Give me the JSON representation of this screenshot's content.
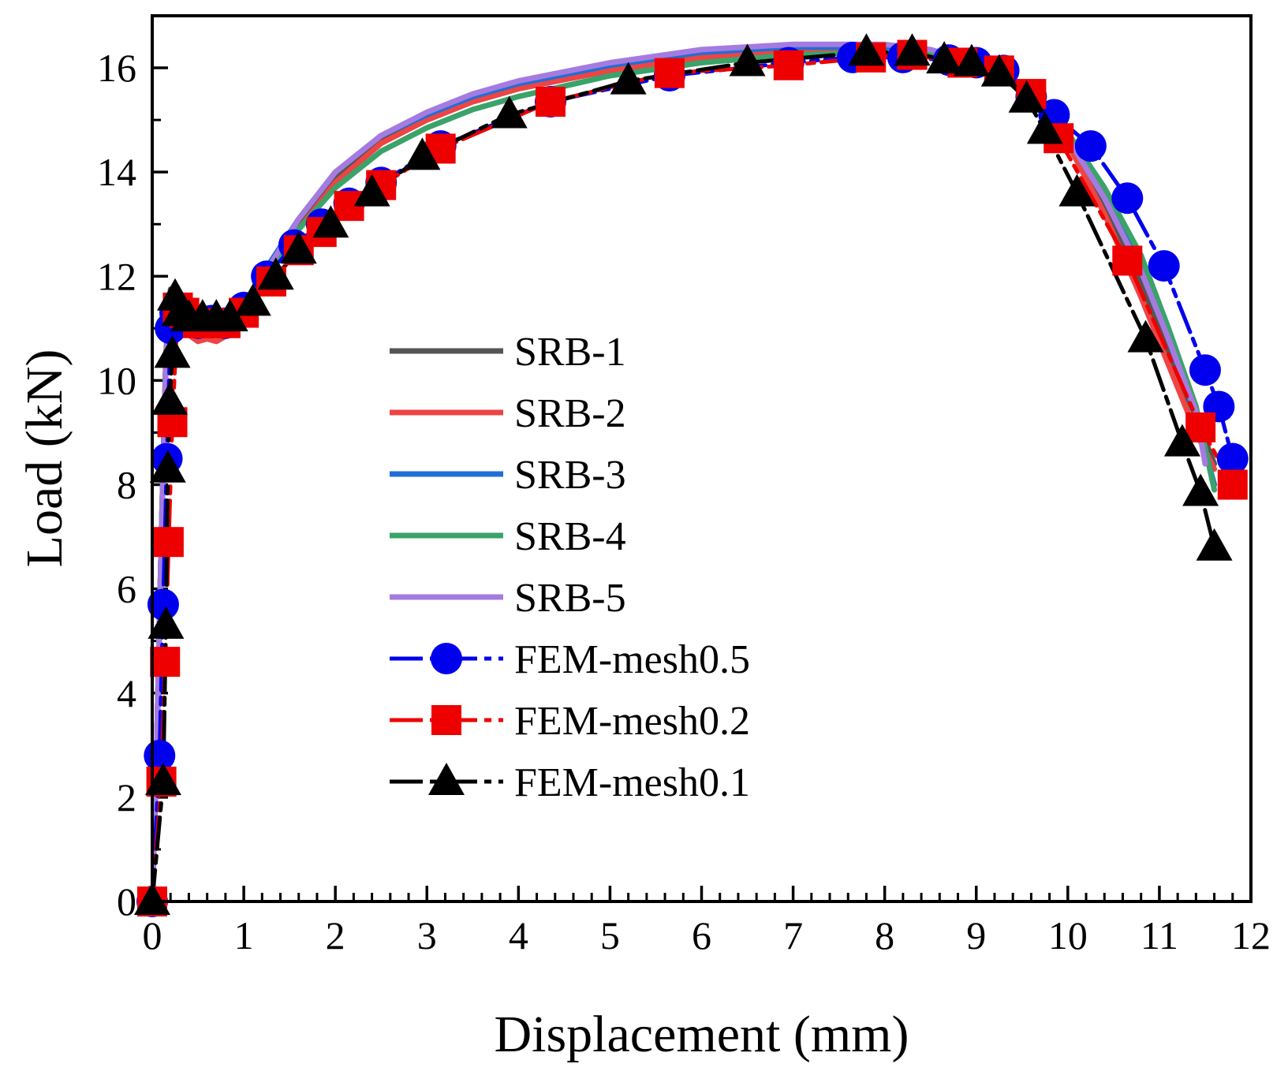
{
  "chart_data": {
    "type": "line",
    "title": "",
    "xlabel": "Displacement (mm)",
    "ylabel": "Load (kN)",
    "xlim": [
      0,
      12
    ],
    "ylim": [
      0,
      17
    ],
    "xticks": [
      "0",
      "1",
      "2",
      "3",
      "4",
      "5",
      "6",
      "7",
      "8",
      "9",
      "10",
      "11",
      "12"
    ],
    "yticks": [
      "0",
      "2",
      "4",
      "6",
      "8",
      "10",
      "12",
      "14",
      "16"
    ],
    "legend_position": "center-left",
    "series": [
      {
        "name": "SRB-1",
        "color": "#555555",
        "marker": "none",
        "dash": "solid",
        "x": [
          0,
          0.05,
          0.1,
          0.15,
          0.2,
          0.3,
          0.5,
          0.7,
          0.85,
          1.0,
          1.3,
          1.6,
          2.0,
          2.5,
          3.0,
          3.5,
          4.0,
          5.0,
          6.0,
          7.0,
          8.0,
          8.5,
          9.0,
          9.4,
          9.7,
          10.0,
          10.4,
          10.8,
          11.1,
          11.4,
          11.6
        ],
        "y": [
          0,
          3,
          7,
          10.5,
          11.75,
          11.2,
          10.9,
          10.9,
          11.0,
          11.3,
          12.2,
          13.0,
          13.9,
          14.6,
          15.0,
          15.35,
          15.6,
          15.95,
          16.2,
          16.3,
          16.3,
          16.25,
          16.05,
          15.7,
          15.3,
          14.7,
          13.4,
          11.9,
          10.5,
          9.3,
          8.4
        ]
      },
      {
        "name": "SRB-2",
        "color": "#ee4444",
        "marker": "none",
        "dash": "solid",
        "x": [
          0,
          0.05,
          0.1,
          0.15,
          0.2,
          0.3,
          0.5,
          0.6,
          0.7,
          0.85,
          1.0,
          1.3,
          1.6,
          2.0,
          2.5,
          3.0,
          3.5,
          4.0,
          5.0,
          6.0,
          7.0,
          8.0,
          8.5,
          9.0,
          9.4,
          9.7,
          10.0,
          10.4,
          10.8,
          11.1,
          11.4,
          11.6
        ],
        "y": [
          0,
          3,
          7,
          10.5,
          11.6,
          11.0,
          10.75,
          10.8,
          10.75,
          10.9,
          11.3,
          12.1,
          12.9,
          13.8,
          14.55,
          15.0,
          15.35,
          15.6,
          15.95,
          16.2,
          16.3,
          16.3,
          16.25,
          16.05,
          15.7,
          15.2,
          14.55,
          13.2,
          11.6,
          10.3,
          9.0,
          8.3
        ]
      },
      {
        "name": "SRB-3",
        "color": "#1f6fd6",
        "marker": "none",
        "dash": "solid",
        "x": [
          0,
          0.05,
          0.1,
          0.15,
          0.2,
          0.3,
          0.5,
          0.7,
          0.85,
          1.0,
          1.3,
          1.6,
          2.0,
          2.5,
          3.0,
          3.5,
          4.0,
          5.0,
          6.0,
          7.0,
          8.0,
          8.5,
          9.0,
          9.4,
          9.7,
          10.0,
          10.4,
          10.8,
          11.1,
          11.4,
          11.6
        ],
        "y": [
          0,
          3,
          7,
          10.4,
          11.5,
          11.1,
          10.95,
          10.95,
          11.05,
          11.4,
          12.3,
          13.1,
          14.0,
          14.7,
          15.1,
          15.45,
          15.7,
          16.05,
          16.3,
          16.4,
          16.4,
          16.3,
          16.1,
          15.75,
          15.3,
          14.7,
          13.6,
          12.2,
          10.8,
          9.3,
          8.0
        ]
      },
      {
        "name": "SRB-4",
        "color": "#3aa36a",
        "marker": "none",
        "dash": "solid",
        "x": [
          0,
          0.05,
          0.1,
          0.15,
          0.2,
          0.3,
          0.5,
          0.7,
          0.85,
          1.0,
          1.3,
          1.6,
          2.0,
          2.5,
          3.0,
          3.5,
          4.0,
          5.0,
          6.0,
          7.0,
          8.0,
          8.5,
          9.0,
          9.4,
          9.7,
          10.0,
          10.4,
          10.8,
          11.1,
          11.4,
          11.6
        ],
        "y": [
          0,
          3,
          7,
          10.4,
          11.5,
          11.05,
          10.9,
          10.9,
          11.0,
          11.3,
          12.1,
          12.9,
          13.7,
          14.4,
          14.85,
          15.2,
          15.45,
          15.85,
          16.1,
          16.25,
          16.3,
          16.25,
          16.05,
          15.7,
          15.3,
          14.75,
          13.7,
          12.4,
          11.0,
          9.5,
          7.9
        ]
      },
      {
        "name": "SRB-5",
        "color": "#a57be0",
        "marker": "none",
        "dash": "solid",
        "x": [
          0,
          0.05,
          0.1,
          0.15,
          0.2,
          0.3,
          0.5,
          0.7,
          0.85,
          1.0,
          1.3,
          1.6,
          2.0,
          2.5,
          3.0,
          3.5,
          4.0,
          5.0,
          6.0,
          7.0,
          8.0,
          8.5,
          9.0,
          9.4,
          9.7,
          10.0,
          10.4,
          10.8,
          11.1,
          11.4,
          11.5
        ],
        "y": [
          0,
          3,
          7,
          10.4,
          11.5,
          11.1,
          10.95,
          10.95,
          11.05,
          11.35,
          12.25,
          13.1,
          14.0,
          14.7,
          15.15,
          15.5,
          15.75,
          16.1,
          16.35,
          16.45,
          16.45,
          16.35,
          16.1,
          15.75,
          15.3,
          14.65,
          13.5,
          12.1,
          10.8,
          9.4,
          8.4
        ]
      },
      {
        "name": "FEM-mesh0.5",
        "color": "#0000ee",
        "marker": "circle",
        "dash": "dashdot",
        "x": [
          0,
          0.08,
          0.12,
          0.16,
          0.2,
          0.25,
          0.35,
          0.5,
          0.65,
          0.8,
          1.0,
          1.25,
          1.55,
          1.85,
          2.15,
          2.5,
          3.15,
          4.35,
          5.65,
          6.95,
          7.65,
          8.2,
          8.7,
          9.0,
          9.3,
          9.6,
          9.85,
          10.25,
          10.65,
          11.05,
          11.5,
          11.65,
          11.8
        ],
        "y": [
          0,
          2.8,
          5.7,
          8.5,
          11.0,
          11.3,
          11.2,
          11.1,
          11.15,
          11.1,
          11.4,
          12.0,
          12.6,
          13.0,
          13.4,
          13.8,
          14.5,
          15.35,
          15.85,
          16.1,
          16.2,
          16.2,
          16.15,
          16.1,
          15.95,
          15.45,
          15.1,
          14.5,
          13.5,
          12.2,
          10.2,
          9.5,
          8.5
        ]
      },
      {
        "name": "FEM-mesh0.2",
        "color": "#ee0000",
        "marker": "square",
        "dash": "dashdot",
        "x": [
          0,
          0.1,
          0.14,
          0.18,
          0.22,
          0.28,
          0.35,
          0.5,
          0.65,
          0.8,
          1.0,
          1.3,
          1.6,
          1.85,
          2.15,
          2.5,
          3.15,
          4.35,
          5.65,
          6.95,
          7.85,
          8.3,
          8.85,
          9.25,
          9.6,
          9.9,
          10.65,
          11.45,
          11.8
        ],
        "y": [
          0,
          2.3,
          4.6,
          6.9,
          9.2,
          11.4,
          11.3,
          11.1,
          11.1,
          11.1,
          11.3,
          11.9,
          12.5,
          12.85,
          13.35,
          13.75,
          14.45,
          15.35,
          15.9,
          16.05,
          16.2,
          16.25,
          16.1,
          15.95,
          15.5,
          14.65,
          12.3,
          9.1,
          8.0
        ]
      },
      {
        "name": "FEM-mesh0.1",
        "color": "#000000",
        "marker": "triangle",
        "dash": "dashdot",
        "x": [
          0,
          0.12,
          0.15,
          0.17,
          0.19,
          0.22,
          0.25,
          0.3,
          0.4,
          0.55,
          0.7,
          0.85,
          1.1,
          1.35,
          1.6,
          1.95,
          2.4,
          2.95,
          3.9,
          5.2,
          6.5,
          7.8,
          8.3,
          8.65,
          8.95,
          9.25,
          9.55,
          9.75,
          10.1,
          10.85,
          11.25,
          11.45,
          11.6
        ],
        "y": [
          0,
          2.3,
          5.3,
          8.3,
          9.6,
          10.5,
          11.6,
          11.3,
          11.2,
          11.2,
          11.2,
          11.2,
          11.5,
          12.0,
          12.5,
          13.0,
          13.6,
          14.3,
          15.1,
          15.75,
          16.1,
          16.3,
          16.3,
          16.15,
          16.1,
          15.9,
          15.4,
          14.8,
          13.6,
          10.8,
          8.8,
          7.85,
          6.8
        ]
      }
    ]
  }
}
